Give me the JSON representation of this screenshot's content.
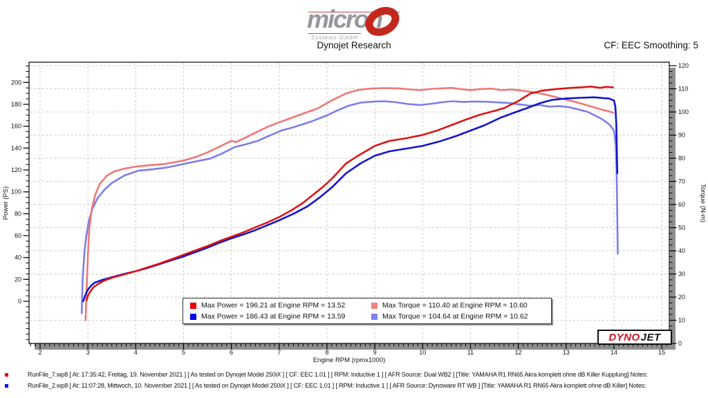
{
  "header": {
    "brand": "micron",
    "brand_sub": "Systems GmbH",
    "title": "Dynojet Research",
    "correction": "CF: EEC Smoothing: 5"
  },
  "watermark": {
    "part1": "DYNO",
    "part2": "JET"
  },
  "chart_data": {
    "type": "line",
    "x_axis": {
      "label": "Engine RPM (rpmx1000)",
      "min": 1.769,
      "max": 15.157,
      "tick_min": 2,
      "tick_max": 15,
      "major": 1,
      "minor": 0.1
    },
    "y_left_axis": {
      "label": "Power (PS)",
      "min": -38.5,
      "max": 218.5,
      "tick_min": 0,
      "tick_max": 200,
      "major": 20,
      "minor": 5
    },
    "y_right_axis": {
      "label": "Torque (N-m)",
      "min": 0,
      "max": 121.5,
      "tick_min": 0,
      "tick_max": 120,
      "major": 10,
      "minor": 2.5
    },
    "grid": {
      "color": "#c9c9c9",
      "dash": "3 3"
    },
    "series": [
      {
        "name": "torque-run-2",
        "axis": "right",
        "color": "#7d7de8",
        "points": [
          [
            2.87,
            13
          ],
          [
            2.89,
            28
          ],
          [
            2.93,
            40
          ],
          [
            2.97,
            47
          ],
          [
            3.02,
            53
          ],
          [
            3.1,
            58.5
          ],
          [
            3.2,
            62.7
          ],
          [
            3.35,
            66.5
          ],
          [
            3.5,
            69.3
          ],
          [
            3.76,
            72.5
          ],
          [
            4.05,
            74.6
          ],
          [
            4.35,
            75.2
          ],
          [
            4.65,
            76
          ],
          [
            5.0,
            77.5
          ],
          [
            5.3,
            78.8
          ],
          [
            5.55,
            79.8
          ],
          [
            5.8,
            82
          ],
          [
            6.07,
            84.8
          ],
          [
            6.3,
            86
          ],
          [
            6.55,
            87.5
          ],
          [
            6.8,
            89.8
          ],
          [
            7.05,
            92
          ],
          [
            7.25,
            93.1
          ],
          [
            7.66,
            95.8
          ],
          [
            8.0,
            98.5
          ],
          [
            8.2,
            100.5
          ],
          [
            8.45,
            102.7
          ],
          [
            8.7,
            104
          ],
          [
            9.0,
            104.5
          ],
          [
            9.2,
            104.6
          ],
          [
            9.45,
            104.2
          ],
          [
            9.7,
            103.4
          ],
          [
            9.95,
            103
          ],
          [
            10.2,
            103.6
          ],
          [
            10.4,
            104.2
          ],
          [
            10.62,
            104.64
          ],
          [
            10.85,
            104.3
          ],
          [
            11.1,
            104.5
          ],
          [
            11.35,
            104.4
          ],
          [
            11.6,
            104.1
          ],
          [
            11.85,
            103.8
          ],
          [
            12.05,
            103.2
          ],
          [
            12.25,
            102.7
          ],
          [
            12.45,
            103
          ],
          [
            12.65,
            102.3
          ],
          [
            12.85,
            102.5
          ],
          [
            13.05,
            102.1
          ],
          [
            13.25,
            101.1
          ],
          [
            13.45,
            100
          ],
          [
            13.6,
            98.5
          ],
          [
            13.75,
            96.9
          ],
          [
            13.9,
            94.7
          ],
          [
            14.0,
            92
          ],
          [
            14.04,
            86
          ],
          [
            14.06,
            70
          ],
          [
            14.08,
            38.8
          ]
        ]
      },
      {
        "name": "torque-run-1",
        "axis": "right",
        "color": "#ee7777",
        "points": [
          [
            2.95,
            10
          ],
          [
            2.97,
            22
          ],
          [
            3.0,
            38
          ],
          [
            3.03,
            50
          ],
          [
            3.08,
            58
          ],
          [
            3.15,
            64
          ],
          [
            3.25,
            69
          ],
          [
            3.4,
            72.5
          ],
          [
            3.55,
            74.3
          ],
          [
            3.76,
            75.5
          ],
          [
            4.0,
            76.4
          ],
          [
            4.3,
            77
          ],
          [
            4.6,
            77.5
          ],
          [
            5.0,
            79
          ],
          [
            5.25,
            80.5
          ],
          [
            5.5,
            82.5
          ],
          [
            5.75,
            85
          ],
          [
            6.0,
            87.5
          ],
          [
            6.1,
            87
          ],
          [
            6.3,
            89
          ],
          [
            6.5,
            91
          ],
          [
            6.75,
            93.5
          ],
          [
            7.0,
            95.5
          ],
          [
            7.4,
            98.5
          ],
          [
            7.8,
            101.5
          ],
          [
            8.1,
            105
          ],
          [
            8.4,
            108
          ],
          [
            8.65,
            109.5
          ],
          [
            8.9,
            110.1
          ],
          [
            9.2,
            110.3
          ],
          [
            9.5,
            110.2
          ],
          [
            9.75,
            109.7
          ],
          [
            9.95,
            109.4
          ],
          [
            10.2,
            110
          ],
          [
            10.4,
            110.2
          ],
          [
            10.6,
            110.4
          ],
          [
            10.8,
            109.9
          ],
          [
            11.0,
            109.4
          ],
          [
            11.2,
            109.9
          ],
          [
            11.45,
            110.1
          ],
          [
            11.65,
            109.4
          ],
          [
            11.85,
            109.7
          ],
          [
            12.05,
            109.3
          ],
          [
            12.26,
            108.7
          ],
          [
            12.5,
            107.8
          ],
          [
            12.75,
            106.6
          ],
          [
            13.0,
            105.3
          ],
          [
            13.25,
            104
          ],
          [
            13.5,
            102.5
          ],
          [
            13.75,
            101
          ],
          [
            13.9,
            100.2
          ],
          [
            13.98,
            99.7
          ]
        ]
      },
      {
        "name": "power-run-2",
        "axis": "left",
        "color": "#1414cd",
        "points": [
          [
            2.9,
            0
          ],
          [
            2.94,
            5
          ],
          [
            2.99,
            10
          ],
          [
            3.06,
            14
          ],
          [
            3.14,
            17
          ],
          [
            3.3,
            19.5
          ],
          [
            3.5,
            22
          ],
          [
            3.76,
            25
          ],
          [
            4.0,
            27.5
          ],
          [
            4.25,
            30.5
          ],
          [
            4.5,
            34
          ],
          [
            4.75,
            37.5
          ],
          [
            5.0,
            41
          ],
          [
            5.25,
            45
          ],
          [
            5.5,
            49
          ],
          [
            5.75,
            53.5
          ],
          [
            6.0,
            57.5
          ],
          [
            6.25,
            61
          ],
          [
            6.5,
            65
          ],
          [
            6.75,
            69.5
          ],
          [
            7.0,
            74
          ],
          [
            7.3,
            80
          ],
          [
            7.6,
            87
          ],
          [
            7.85,
            95
          ],
          [
            8.1,
            104
          ],
          [
            8.4,
            117
          ],
          [
            8.7,
            126
          ],
          [
            9.0,
            133
          ],
          [
            9.3,
            137
          ],
          [
            9.65,
            139.5
          ],
          [
            10.0,
            142
          ],
          [
            10.35,
            146
          ],
          [
            10.7,
            151
          ],
          [
            11.0,
            156
          ],
          [
            11.3,
            161
          ],
          [
            11.64,
            168
          ],
          [
            11.95,
            173
          ],
          [
            12.18,
            176.5
          ],
          [
            12.45,
            181
          ],
          [
            12.7,
            184
          ],
          [
            13.0,
            185.3
          ],
          [
            13.3,
            186
          ],
          [
            13.59,
            186.43
          ],
          [
            13.75,
            185.8
          ],
          [
            13.9,
            185.3
          ],
          [
            14.0,
            183.5
          ],
          [
            14.03,
            178
          ],
          [
            14.05,
            162
          ],
          [
            14.07,
            117
          ]
        ]
      },
      {
        "name": "power-run-1",
        "axis": "left",
        "color": "#dc1414",
        "points": [
          [
            2.97,
            1
          ],
          [
            3.0,
            5
          ],
          [
            3.05,
            9
          ],
          [
            3.12,
            13
          ],
          [
            3.22,
            16
          ],
          [
            3.35,
            19
          ],
          [
            3.5,
            21.5
          ],
          [
            3.76,
            24.6
          ],
          [
            4.0,
            27.5
          ],
          [
            4.25,
            31
          ],
          [
            4.5,
            34.5
          ],
          [
            4.75,
            38.5
          ],
          [
            5.0,
            42.5
          ],
          [
            5.25,
            46.5
          ],
          [
            5.5,
            50.5
          ],
          [
            5.75,
            55
          ],
          [
            6.0,
            59
          ],
          [
            6.25,
            63
          ],
          [
            6.5,
            67.5
          ],
          [
            6.75,
            72
          ],
          [
            7.0,
            77
          ],
          [
            7.25,
            83
          ],
          [
            7.5,
            90
          ],
          [
            7.7,
            97
          ],
          [
            7.9,
            104
          ],
          [
            8.1,
            112
          ],
          [
            8.4,
            126
          ],
          [
            8.65,
            133
          ],
          [
            9.0,
            142
          ],
          [
            9.3,
            146.5
          ],
          [
            9.65,
            149
          ],
          [
            10.0,
            152
          ],
          [
            10.3,
            156
          ],
          [
            10.6,
            161
          ],
          [
            10.9,
            166
          ],
          [
            11.2,
            170.5
          ],
          [
            11.5,
            174
          ],
          [
            11.7,
            176.5
          ],
          [
            12.0,
            183
          ],
          [
            12.26,
            190
          ],
          [
            12.5,
            192.5
          ],
          [
            12.8,
            194
          ],
          [
            13.1,
            195
          ],
          [
            13.3,
            195.5
          ],
          [
            13.52,
            196.21
          ],
          [
            13.62,
            195.6
          ],
          [
            13.72,
            195.1
          ],
          [
            13.82,
            195.9
          ],
          [
            13.98,
            195.6
          ]
        ]
      }
    ],
    "annotations": {
      "max_power_run1": {
        "value": 196.21,
        "rpm": 13.52
      },
      "max_power_run2": {
        "value": 186.43,
        "rpm": 13.59
      },
      "max_torque_run1": {
        "value": 110.4,
        "rpm": 10.6
      },
      "max_torque_run2": {
        "value": 104.64,
        "rpm": 10.62
      }
    }
  },
  "legend": {
    "entries": [
      {
        "color": "#ee0000",
        "text": "Max Power = 196.21 at Engine RPM = 13.52"
      },
      {
        "color": "#f08080",
        "text": "Max Torque = 110.40 at Engine RPM = 10.60"
      },
      {
        "color": "#0000ee",
        "text": "Max Power = 186.43 at Engine RPM = 13.59"
      },
      {
        "color": "#8080f0",
        "text": "Max Torque = 104.64 at Engine RPM = 10.62"
      }
    ]
  },
  "footer": {
    "runs": [
      {
        "color": "#ee0000",
        "text": "RunFile_7.wp8  [ At: 17:35:42, Freitag, 19. November 2021 ] [ As tested on Dynojet Model 250iX ] [ CF: EEC 1.01 ] [ RPM: Inductive 1 ] [ AFR Source: Dual WB2 ] [Title: YAMAHA R1 RN65 Akra komplett ohne dB Killer Kupplung]   Notes:"
      },
      {
        "color": "#0000ee",
        "text": "RunFile_2.wp8  [ At: 11:07:28, Mittwoch, 10. November 2021 ] [ As tested on Dynojet Model 250iX ] [ CF: EEC 1.01 ] [ RPM: Inductive 1 ] [ AFR Source: Dynoware RT WB ] [Title: YAMAHA R1 RN65 Akra komplett ohne dB Killer]   Notes:"
      }
    ]
  }
}
